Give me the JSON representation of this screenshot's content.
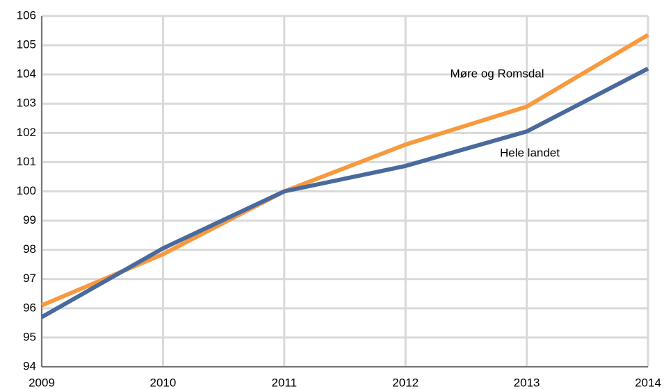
{
  "chart_data": {
    "type": "line",
    "x": [
      2009,
      2010,
      2011,
      2012,
      2013,
      2014
    ],
    "series": [
      {
        "name": "Møre og Romsdal",
        "color": "#f79a3e",
        "values": [
          96.1,
          97.85,
          100,
          101.6,
          102.9,
          105.35
        ]
      },
      {
        "name": "Hele landet",
        "color": "#4a6a9e",
        "values": [
          95.7,
          98.05,
          100,
          100.87,
          102.05,
          104.2
        ]
      }
    ],
    "xlim": [
      2009,
      2014
    ],
    "xticks": [
      2009,
      2010,
      2011,
      2012,
      2013,
      2014
    ],
    "ylim": [
      94,
      106
    ],
    "yticks": [
      94,
      95,
      96,
      97,
      98,
      99,
      100,
      101,
      102,
      103,
      104,
      105,
      106
    ],
    "grid": true
  }
}
